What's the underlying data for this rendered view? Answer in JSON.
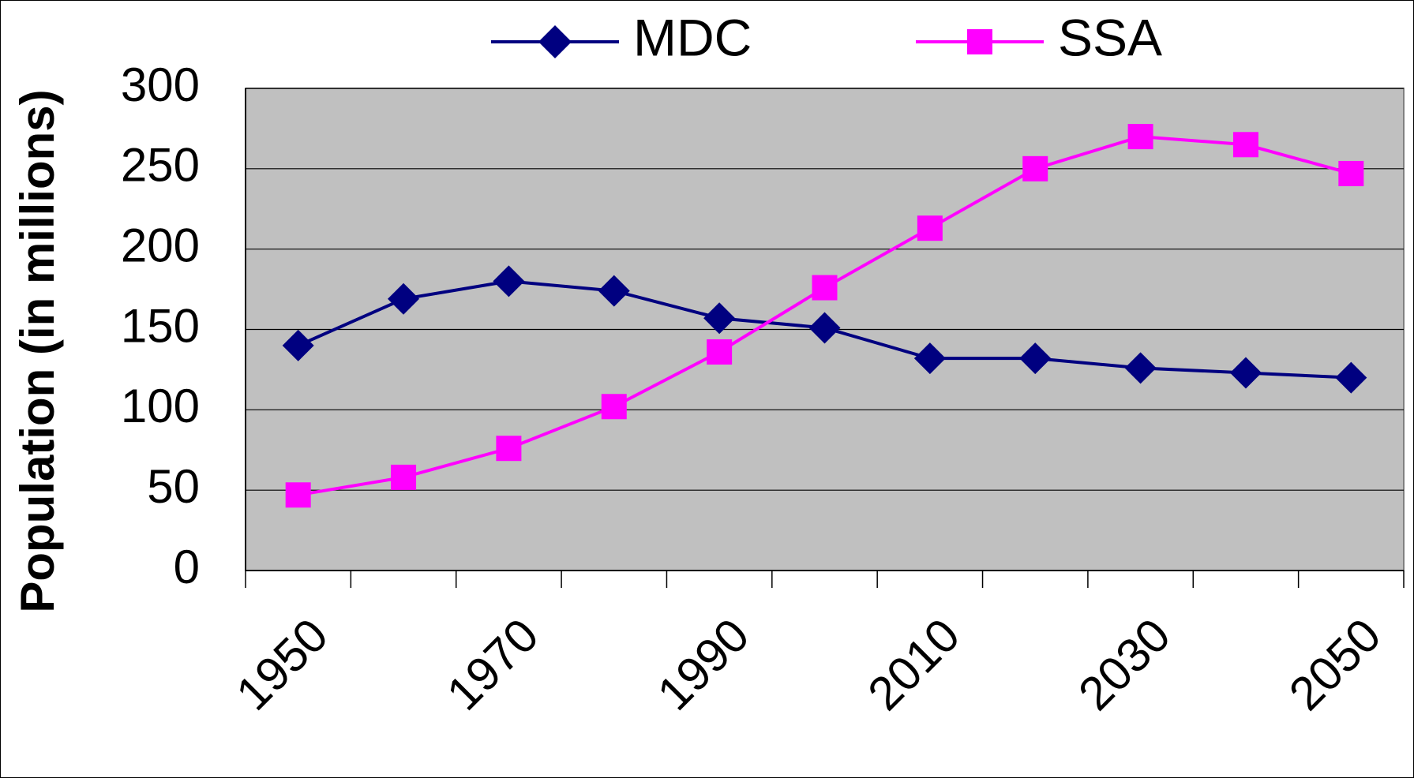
{
  "chart_data": {
    "type": "line",
    "y_axis_label": "Population (in millions)",
    "categories": [
      "1950",
      null,
      "1970",
      null,
      "1990",
      null,
      "2010",
      null,
      "2030",
      null,
      "2050"
    ],
    "series": [
      {
        "name": "MDC",
        "color": "#000080",
        "marker": "diamond",
        "values": [
          140,
          169,
          180,
          174,
          157,
          151,
          132,
          132,
          126,
          123,
          120
        ]
      },
      {
        "name": "SSA",
        "color": "#ff00ff",
        "marker": "square",
        "values": [
          47,
          58,
          76,
          102,
          136,
          176,
          213,
          250,
          270,
          265,
          247
        ]
      }
    ],
    "ylim": [
      0,
      300
    ],
    "yticks": [
      0,
      50,
      100,
      150,
      200,
      250,
      300
    ],
    "grid": true,
    "legend": "top"
  }
}
